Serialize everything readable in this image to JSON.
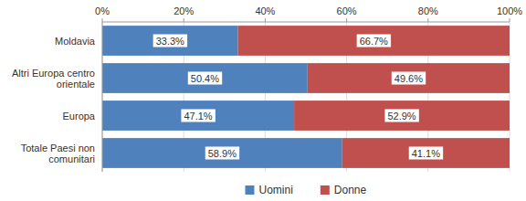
{
  "chart_data": {
    "type": "bar",
    "orientation": "horizontal",
    "stacked": true,
    "categories": [
      "Moldavia",
      "Altri Europa centro\norientale",
      "Europa",
      "Totale Paesi non\ncomunitari"
    ],
    "series": [
      {
        "name": "Uomini",
        "color": "#4F81BD",
        "values": [
          33.3,
          50.4,
          47.1,
          58.9
        ],
        "value_labels": [
          "33.3%",
          "50.4%",
          "47.1%",
          "58.9%"
        ]
      },
      {
        "name": "Donne",
        "color": "#C0504D",
        "values": [
          66.7,
          49.6,
          52.9,
          41.1
        ],
        "value_labels": [
          "66.7%",
          "49.6%",
          "52.9%",
          "41.1%"
        ]
      }
    ],
    "xlim": [
      0,
      100
    ],
    "xticks": [
      {
        "value": 0,
        "label": "0%"
      },
      {
        "value": 20,
        "label": "20%"
      },
      {
        "value": 40,
        "label": "40%"
      },
      {
        "value": 60,
        "label": "60%"
      },
      {
        "value": 80,
        "label": "80%"
      },
      {
        "value": 100,
        "label": "100%"
      }
    ],
    "grid": true,
    "data_labels": true,
    "legend": "bottom"
  }
}
